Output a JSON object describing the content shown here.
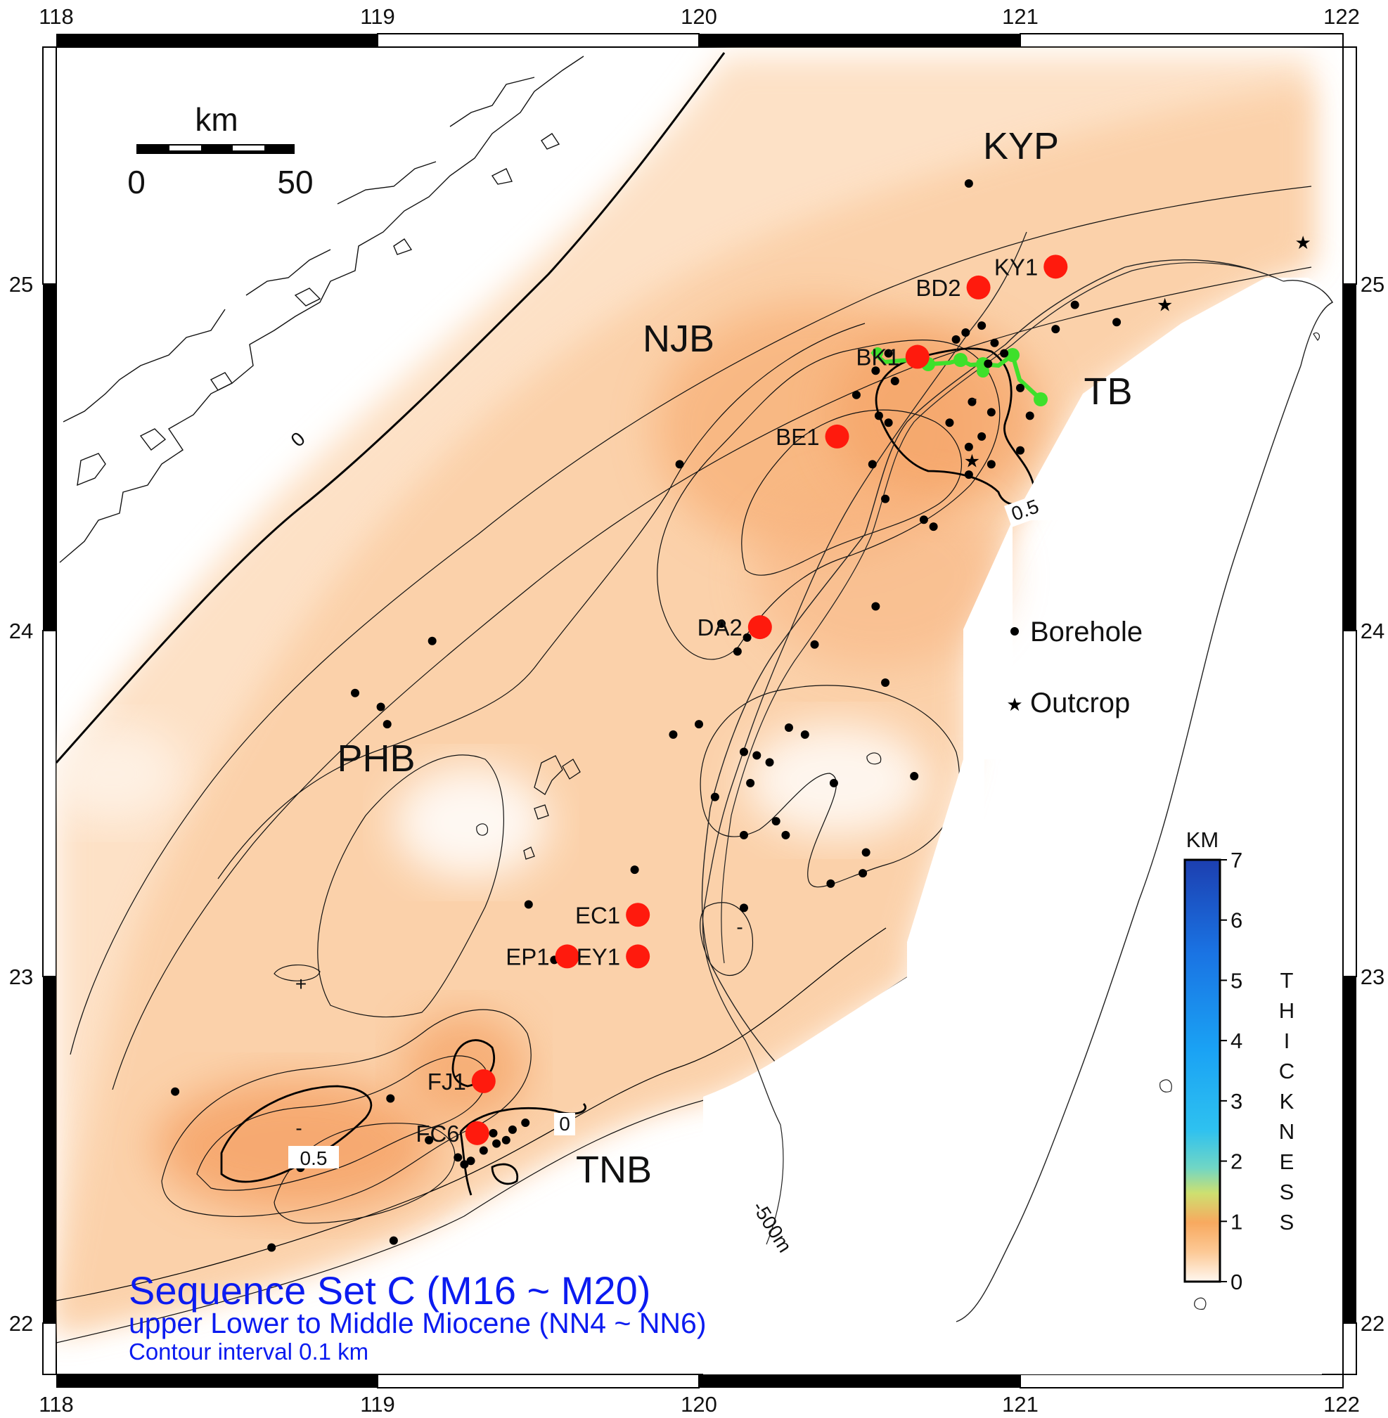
{
  "colors": {
    "thickness_fill": "#f8b27a",
    "well_marker": "#ff1a0d",
    "profile_line": "#3ee02b",
    "title": "#0b1bf0"
  },
  "axes": {
    "lon_ticks": [
      "118",
      "119",
      "120",
      "121",
      "122"
    ],
    "lat_ticks": [
      "25",
      "24",
      "23",
      "22"
    ]
  },
  "scale_bar": {
    "unit": "km",
    "min": "0",
    "max": "50"
  },
  "regions": {
    "kyp": "KYP",
    "njb": "NJB",
    "tb": "TB",
    "phb": "PHB",
    "tnb": "TNB"
  },
  "wells": [
    {
      "name": "KY1",
      "lon": 121.11,
      "lat": 25.05
    },
    {
      "name": "BD2",
      "lon": 120.87,
      "lat": 24.99
    },
    {
      "name": "BK1",
      "lon": 120.68,
      "lat": 24.79
    },
    {
      "name": "BE1",
      "lon": 120.43,
      "lat": 24.56
    },
    {
      "name": "DA2",
      "lon": 120.19,
      "lat": 24.01
    },
    {
      "name": "EC1",
      "lon": 119.81,
      "lat": 23.18
    },
    {
      "name": "EP1",
      "lon": 119.59,
      "lat": 23.06
    },
    {
      "name": "EY1",
      "lon": 119.81,
      "lat": 23.06
    },
    {
      "name": "FJ1",
      "lon": 119.33,
      "lat": 22.7
    },
    {
      "name": "FC6",
      "lon": 119.31,
      "lat": 22.55
    }
  ],
  "boreholes": [
    [
      120.84,
      25.29
    ],
    [
      121.17,
      24.94
    ],
    [
      121.11,
      24.87
    ],
    [
      121.3,
      24.89
    ],
    [
      120.8,
      24.84
    ],
    [
      120.83,
      24.86
    ],
    [
      120.88,
      24.88
    ],
    [
      120.92,
      24.83
    ],
    [
      120.95,
      24.8
    ],
    [
      120.9,
      24.77
    ],
    [
      120.59,
      24.8
    ],
    [
      120.55,
      24.75
    ],
    [
      120.61,
      24.72
    ],
    [
      120.49,
      24.68
    ],
    [
      121.0,
      24.7
    ],
    [
      121.03,
      24.62
    ],
    [
      120.91,
      24.63
    ],
    [
      120.85,
      24.66
    ],
    [
      120.56,
      24.62
    ],
    [
      120.59,
      24.6
    ],
    [
      120.78,
      24.6
    ],
    [
      120.88,
      24.56
    ],
    [
      120.84,
      24.53
    ],
    [
      121.0,
      24.52
    ],
    [
      120.91,
      24.48
    ],
    [
      120.54,
      24.48
    ],
    [
      120.84,
      24.45
    ],
    [
      120.58,
      24.38
    ],
    [
      120.7,
      24.32
    ],
    [
      120.73,
      24.3
    ],
    [
      119.94,
      24.48
    ],
    [
      120.55,
      24.07
    ],
    [
      120.07,
      24.02
    ],
    [
      120.15,
      23.98
    ],
    [
      120.12,
      23.94
    ],
    [
      120.36,
      23.96
    ],
    [
      120.58,
      23.85
    ],
    [
      119.17,
      23.97
    ],
    [
      118.93,
      23.82
    ],
    [
      119.01,
      23.78
    ],
    [
      119.03,
      23.73
    ],
    [
      119.92,
      23.7
    ],
    [
      120.0,
      23.73
    ],
    [
      120.28,
      23.72
    ],
    [
      120.33,
      23.7
    ],
    [
      120.14,
      23.65
    ],
    [
      120.18,
      23.64
    ],
    [
      120.22,
      23.62
    ],
    [
      120.16,
      23.56
    ],
    [
      120.42,
      23.56
    ],
    [
      120.67,
      23.58
    ],
    [
      120.05,
      23.52
    ],
    [
      120.24,
      23.45
    ],
    [
      120.27,
      23.41
    ],
    [
      120.14,
      23.41
    ],
    [
      120.52,
      23.36
    ],
    [
      120.51,
      23.3
    ],
    [
      120.41,
      23.27
    ],
    [
      119.8,
      23.31
    ],
    [
      119.47,
      23.21
    ],
    [
      120.14,
      23.2
    ],
    [
      119.55,
      23.05
    ],
    [
      118.37,
      22.67
    ],
    [
      119.04,
      22.65
    ],
    [
      118.76,
      22.45
    ],
    [
      119.16,
      22.53
    ],
    [
      119.25,
      22.48
    ],
    [
      119.27,
      22.46
    ],
    [
      119.29,
      22.47
    ],
    [
      119.33,
      22.5
    ],
    [
      119.37,
      22.52
    ],
    [
      119.42,
      22.56
    ],
    [
      119.46,
      22.58
    ],
    [
      119.36,
      22.55
    ],
    [
      119.4,
      22.53
    ],
    [
      119.05,
      22.24
    ],
    [
      118.67,
      22.22
    ]
  ],
  "outcrops": [
    [
      121.88,
      25.12
    ],
    [
      121.45,
      24.94
    ],
    [
      120.85,
      24.49
    ]
  ],
  "contour_labels": {
    "zero": "0",
    "half": "0.5",
    "zero_south": "0",
    "depth": "-500m",
    "minus": "-",
    "plus": "+",
    "half_north": "0.5"
  },
  "legend": {
    "borehole": "Borehole",
    "outcrop": "Outcrop"
  },
  "colorbar": {
    "unit": "KM",
    "ticks": [
      "0",
      "1",
      "2",
      "3",
      "4",
      "5",
      "6",
      "7"
    ],
    "label": "THICKNESS",
    "letters": [
      "T",
      "H",
      "I",
      "C",
      "K",
      "N",
      "E",
      "S",
      "S"
    ]
  },
  "title": {
    "main": "Sequence Set C (M16 ~ M20)",
    "sub": "upper Lower to Middle Miocene (NN4 ~ NN6)",
    "note": "Contour interval 0.1 km"
  }
}
